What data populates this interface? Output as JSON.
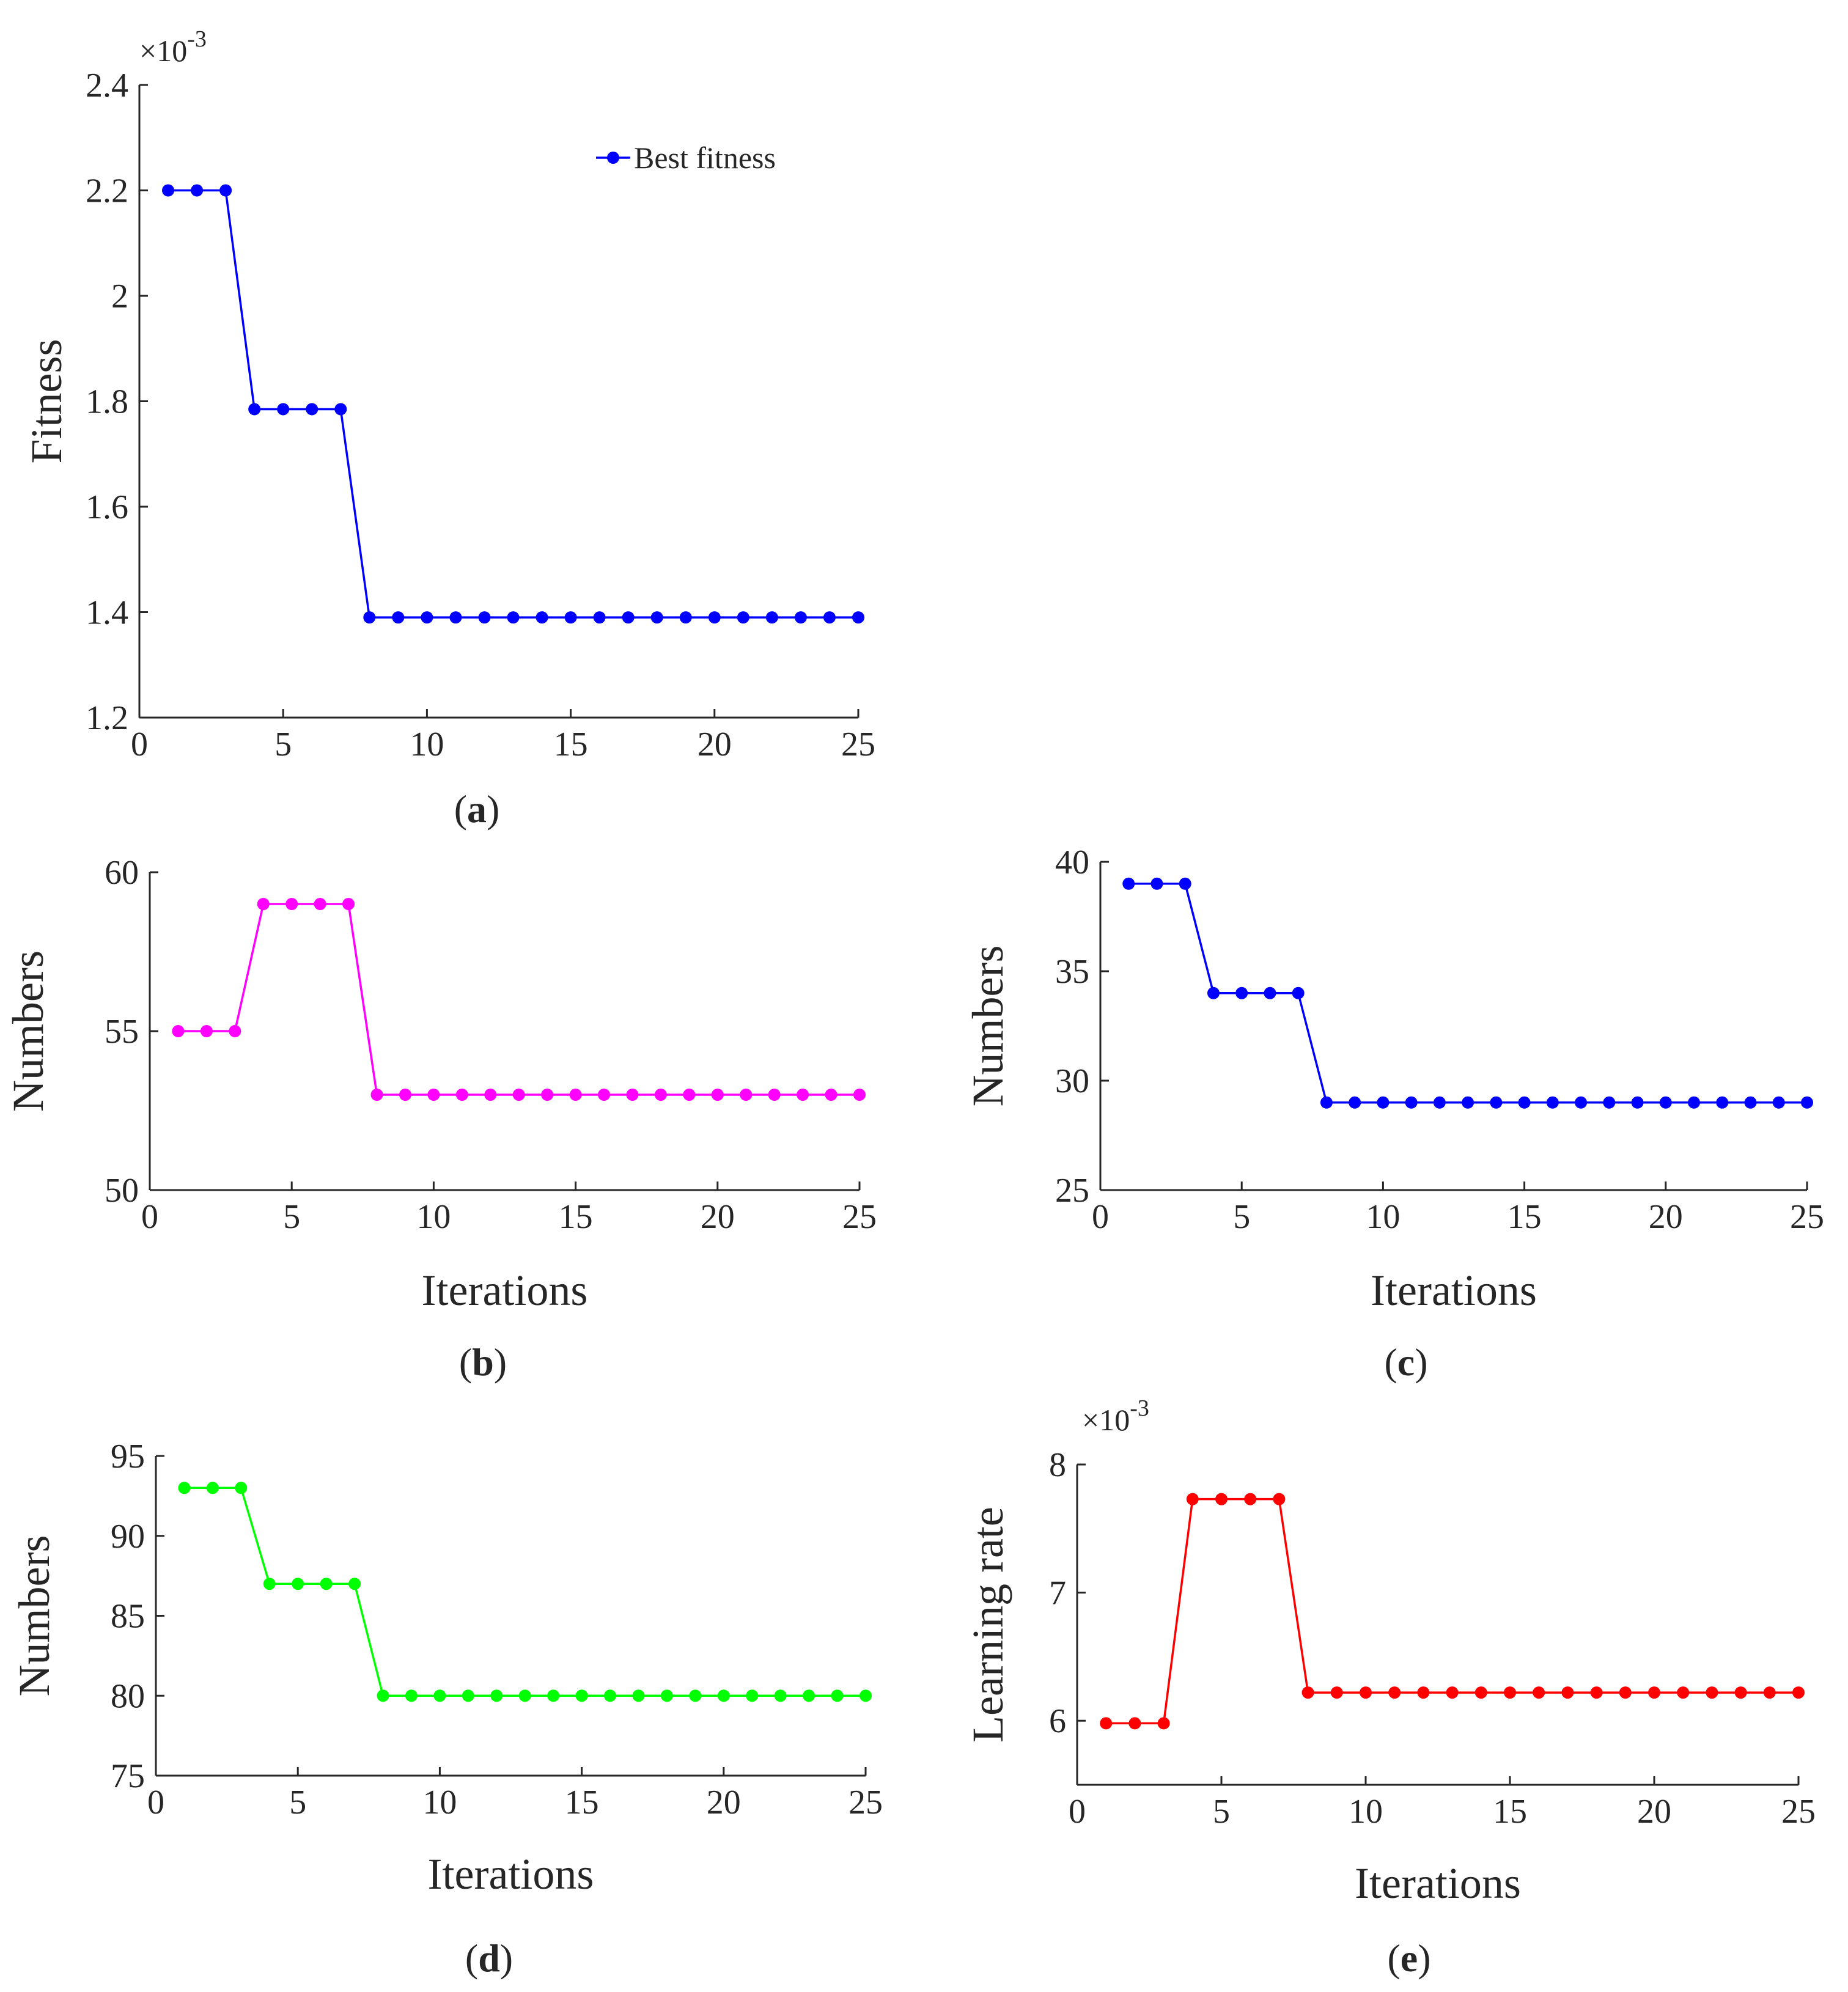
{
  "chart_data": [
    {
      "id": "a",
      "type": "line",
      "caption_letter": "a",
      "title": "",
      "xlabel": "",
      "ylabel": "Fitness",
      "xlim": [
        0,
        25
      ],
      "ylim": [
        1.2,
        2.4
      ],
      "xticks": [
        "0",
        "5",
        "10",
        "15",
        "20",
        "25"
      ],
      "xtick_values": [
        0,
        5,
        10,
        15,
        20,
        25
      ],
      "yticks": [
        "1.2",
        "1.4",
        "1.6",
        "1.8",
        "2",
        "2.2",
        "2.4"
      ],
      "ytick_values": [
        1.2,
        1.4,
        1.6,
        1.8,
        2.0,
        2.2,
        2.4
      ],
      "multiplier_base": "×10",
      "multiplier_exp": "-3",
      "legend": [
        "Best fitness"
      ],
      "color": "#0000ff",
      "series": [
        {
          "name": "Best fitness",
          "x": [
            1,
            2,
            3,
            4,
            5,
            6,
            7,
            8,
            9,
            10,
            11,
            12,
            13,
            14,
            15,
            16,
            17,
            18,
            19,
            20,
            21,
            22,
            23,
            24,
            25
          ],
          "values": [
            2.2,
            2.2,
            2.2,
            1.785,
            1.785,
            1.785,
            1.785,
            1.39,
            1.39,
            1.39,
            1.39,
            1.39,
            1.39,
            1.39,
            1.39,
            1.39,
            1.39,
            1.39,
            1.39,
            1.39,
            1.39,
            1.39,
            1.39,
            1.39,
            1.39
          ]
        }
      ]
    },
    {
      "id": "b",
      "type": "line",
      "caption_letter": "b",
      "title": "",
      "xlabel": "Iterations",
      "ylabel": "Numbers",
      "xlim": [
        0,
        25
      ],
      "ylim": [
        50,
        60
      ],
      "xticks": [
        "0",
        "5",
        "10",
        "15",
        "20",
        "25"
      ],
      "xtick_values": [
        0,
        5,
        10,
        15,
        20,
        25
      ],
      "yticks": [
        "50",
        "55",
        "60"
      ],
      "ytick_values": [
        50,
        55,
        60
      ],
      "color": "#ff00ff",
      "series": [
        {
          "name": "b",
          "x": [
            1,
            2,
            3,
            4,
            5,
            6,
            7,
            8,
            9,
            10,
            11,
            12,
            13,
            14,
            15,
            16,
            17,
            18,
            19,
            20,
            21,
            22,
            23,
            24,
            25
          ],
          "values": [
            55,
            55,
            55,
            59,
            59,
            59,
            59,
            53,
            53,
            53,
            53,
            53,
            53,
            53,
            53,
            53,
            53,
            53,
            53,
            53,
            53,
            53,
            53,
            53,
            53
          ]
        }
      ]
    },
    {
      "id": "c",
      "type": "line",
      "caption_letter": "c",
      "title": "",
      "xlabel": "Iterations",
      "ylabel": "Numbers",
      "xlim": [
        0,
        25
      ],
      "ylim": [
        25,
        40
      ],
      "xticks": [
        "0",
        "5",
        "10",
        "15",
        "20",
        "25"
      ],
      "xtick_values": [
        0,
        5,
        10,
        15,
        20,
        25
      ],
      "yticks": [
        "25",
        "30",
        "35",
        "40"
      ],
      "ytick_values": [
        25,
        30,
        35,
        40
      ],
      "color": "#0000ff",
      "series": [
        {
          "name": "c",
          "x": [
            1,
            2,
            3,
            4,
            5,
            6,
            7,
            8,
            9,
            10,
            11,
            12,
            13,
            14,
            15,
            16,
            17,
            18,
            19,
            20,
            21,
            22,
            23,
            24,
            25
          ],
          "values": [
            39,
            39,
            39,
            34,
            34,
            34,
            34,
            29,
            29,
            29,
            29,
            29,
            29,
            29,
            29,
            29,
            29,
            29,
            29,
            29,
            29,
            29,
            29,
            29,
            29
          ]
        }
      ]
    },
    {
      "id": "d",
      "type": "line",
      "caption_letter": "d",
      "title": "",
      "xlabel": "Iterations",
      "ylabel": "Numbers",
      "xlim": [
        0,
        25
      ],
      "ylim": [
        75,
        95
      ],
      "xticks": [
        "0",
        "5",
        "10",
        "15",
        "20",
        "25"
      ],
      "xtick_values": [
        0,
        5,
        10,
        15,
        20,
        25
      ],
      "yticks": [
        "75",
        "80",
        "85",
        "90",
        "95"
      ],
      "ytick_values": [
        75,
        80,
        85,
        90,
        95
      ],
      "color": "#00ff00",
      "series": [
        {
          "name": "d",
          "x": [
            1,
            2,
            3,
            4,
            5,
            6,
            7,
            8,
            9,
            10,
            11,
            12,
            13,
            14,
            15,
            16,
            17,
            18,
            19,
            20,
            21,
            22,
            23,
            24,
            25
          ],
          "values": [
            93,
            93,
            93,
            87,
            87,
            87,
            87,
            80,
            80,
            80,
            80,
            80,
            80,
            80,
            80,
            80,
            80,
            80,
            80,
            80,
            80,
            80,
            80,
            80,
            80
          ]
        }
      ]
    },
    {
      "id": "e",
      "type": "line",
      "caption_letter": "e",
      "title": "",
      "xlabel": "Iterations",
      "ylabel": "Learning rate",
      "xlim": [
        0,
        25
      ],
      "ylim": [
        5.5,
        8
      ],
      "xticks": [
        "0",
        "5",
        "10",
        "15",
        "20",
        "25"
      ],
      "xtick_values": [
        0,
        5,
        10,
        15,
        20,
        25
      ],
      "yticks": [
        "6",
        "7",
        "8"
      ],
      "ytick_values": [
        6,
        7,
        8
      ],
      "multiplier_base": "×10",
      "multiplier_exp": "-3",
      "color": "#ff0000",
      "series": [
        {
          "name": "e",
          "x": [
            1,
            2,
            3,
            4,
            5,
            6,
            7,
            8,
            9,
            10,
            11,
            12,
            13,
            14,
            15,
            16,
            17,
            18,
            19,
            20,
            21,
            22,
            23,
            24,
            25
          ],
          "values": [
            5.98,
            5.98,
            5.98,
            7.73,
            7.73,
            7.73,
            7.73,
            6.22,
            6.22,
            6.22,
            6.22,
            6.22,
            6.22,
            6.22,
            6.22,
            6.22,
            6.22,
            6.22,
            6.22,
            6.22,
            6.22,
            6.22,
            6.22,
            6.22,
            6.22
          ]
        }
      ]
    }
  ]
}
